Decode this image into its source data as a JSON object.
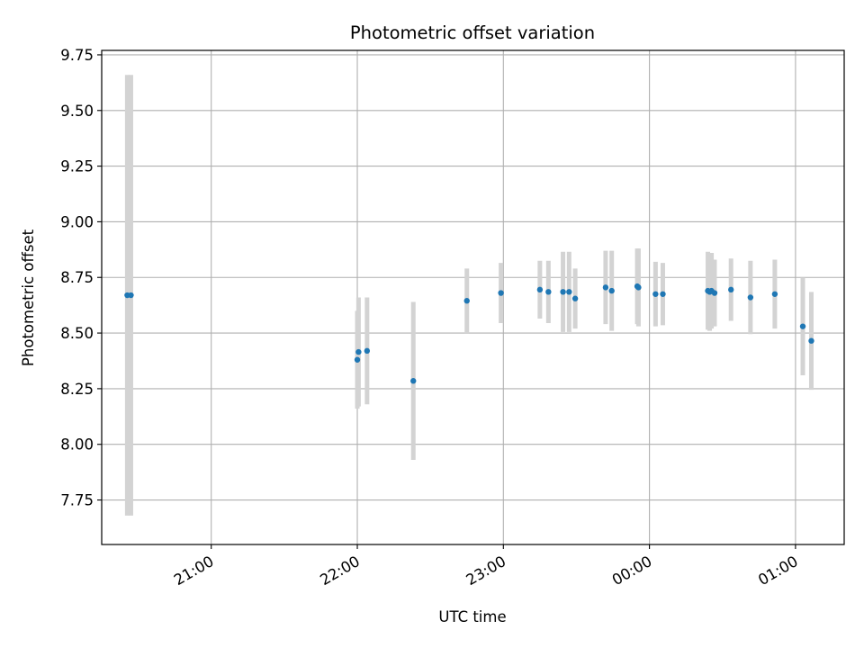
{
  "chart_data": {
    "type": "scatter",
    "title": "Photometric offset variation",
    "xlabel": "UTC time",
    "ylabel": "Photometric offset",
    "x_unit": "UTC time (HH:MM:SS)",
    "xlim": [
      "20:15:00",
      "01:20:00"
    ],
    "ylim": [
      7.55,
      9.77
    ],
    "x_ticks": [
      "21:00",
      "22:00",
      "23:00",
      "00:00",
      "01:00"
    ],
    "y_ticks": [
      "7.75",
      "8.00",
      "8.25",
      "8.50",
      "8.75",
      "9.00",
      "9.25",
      "9.50",
      "9.75"
    ],
    "grid": true,
    "error_bars": true,
    "colors": {
      "points": "#1f77b4",
      "error_bars": "#d3d3d3",
      "grid": "#b0b0b0"
    },
    "points": [
      {
        "x": "20:25:30",
        "y": 8.67,
        "yerr": 0.99
      },
      {
        "x": "20:27:00",
        "y": 8.67,
        "yerr": 0.99
      },
      {
        "x": "22:00:00",
        "y": 8.38,
        "yerr": 0.22
      },
      {
        "x": "22:00:30",
        "y": 8.415,
        "yerr": 0.245
      },
      {
        "x": "22:04:00",
        "y": 8.42,
        "yerr": 0.24
      },
      {
        "x": "22:23:00",
        "y": 8.285,
        "yerr": 0.355
      },
      {
        "x": "22:45:00",
        "y": 8.645,
        "yerr": 0.145
      },
      {
        "x": "22:59:00",
        "y": 8.68,
        "yerr": 0.135
      },
      {
        "x": "23:15:00",
        "y": 8.695,
        "yerr": 0.13
      },
      {
        "x": "23:18:30",
        "y": 8.685,
        "yerr": 0.14
      },
      {
        "x": "23:24:30",
        "y": 8.685,
        "yerr": 0.18
      },
      {
        "x": "23:27:00",
        "y": 8.685,
        "yerr": 0.18
      },
      {
        "x": "23:29:30",
        "y": 8.655,
        "yerr": 0.135
      },
      {
        "x": "23:42:00",
        "y": 8.705,
        "yerr": 0.165
      },
      {
        "x": "23:44:30",
        "y": 8.69,
        "yerr": 0.18
      },
      {
        "x": "23:55:00",
        "y": 8.71,
        "yerr": 0.17
      },
      {
        "x": "23:55:30",
        "y": 8.705,
        "yerr": 0.175
      },
      {
        "x": "00:02:30",
        "y": 8.675,
        "yerr": 0.145
      },
      {
        "x": "00:05:30",
        "y": 8.675,
        "yerr": 0.14
      },
      {
        "x": "00:24:00",
        "y": 8.69,
        "yerr": 0.175
      },
      {
        "x": "00:24:45",
        "y": 8.685,
        "yerr": 0.175
      },
      {
        "x": "00:25:30",
        "y": 8.69,
        "yerr": 0.17
      },
      {
        "x": "00:26:45",
        "y": 8.68,
        "yerr": 0.15
      },
      {
        "x": "00:33:30",
        "y": 8.695,
        "yerr": 0.14
      },
      {
        "x": "00:41:30",
        "y": 8.66,
        "yerr": 0.165
      },
      {
        "x": "00:51:30",
        "y": 8.675,
        "yerr": 0.155
      },
      {
        "x": "01:03:00",
        "y": 8.53,
        "yerr": 0.22
      },
      {
        "x": "01:06:30",
        "y": 8.465,
        "yerr": 0.22
      }
    ]
  }
}
